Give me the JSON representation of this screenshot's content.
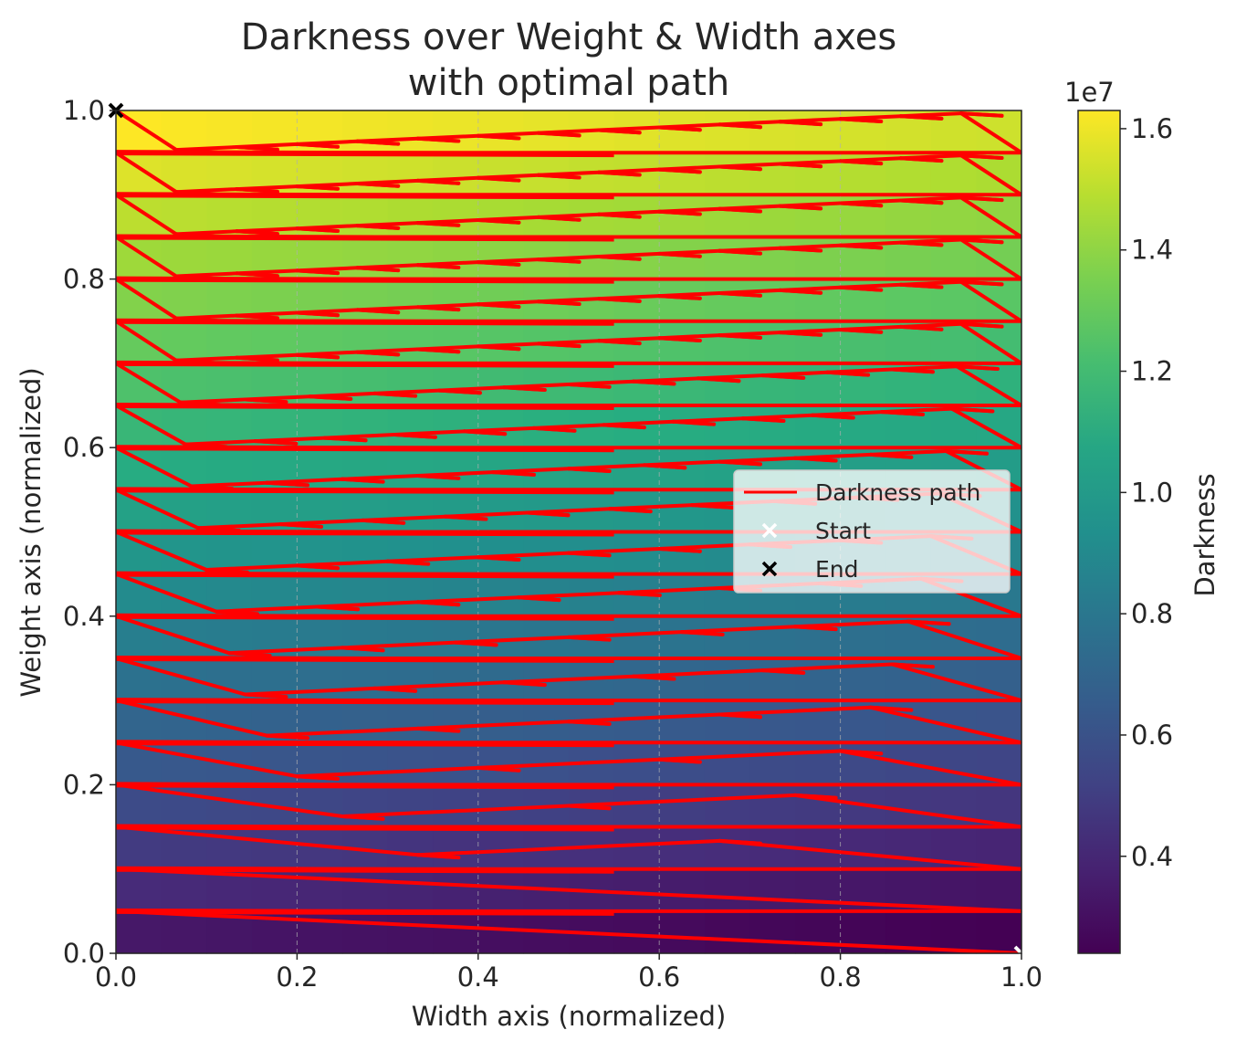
{
  "chart_data": {
    "type": "heatmap",
    "title": "Darkness over Weight & Width axes\nwith optimal path",
    "xlabel": "Width axis (normalized)",
    "ylabel": "Weight axis (normalized)",
    "xlim": [
      0.0,
      1.0
    ],
    "ylim": [
      0.0,
      1.0
    ],
    "grid": true,
    "x_ticks": [
      "0.0",
      "0.2",
      "0.4",
      "0.6",
      "0.8",
      "1.0"
    ],
    "y_ticks": [
      "0.0",
      "0.2",
      "0.4",
      "0.6",
      "0.8",
      "1.0"
    ],
    "colorbar": {
      "label": "Darkness",
      "exponent": "1e7",
      "colormap": "viridis",
      "range": [
        0.24,
        1.63
      ],
      "ticks": [
        "0.4",
        "0.6",
        "0.8",
        "1.0",
        "1.2",
        "1.4",
        "1.6"
      ]
    },
    "heatmap_rows": 20,
    "heatmap_cols": 20,
    "path": {
      "name": "Darkness path",
      "color": "#ff0000",
      "rows": 20,
      "start": [
        1.0,
        0.0
      ],
      "end": [
        0.0,
        1.0
      ]
    },
    "legend": {
      "placement": "center-right",
      "entries": [
        {
          "label": "Darkness path",
          "marker": "line",
          "color": "#ff0000"
        },
        {
          "label": "Start",
          "marker": "x",
          "color": "#ffffff"
        },
        {
          "label": "End",
          "marker": "x",
          "color": "#000000"
        }
      ]
    }
  }
}
